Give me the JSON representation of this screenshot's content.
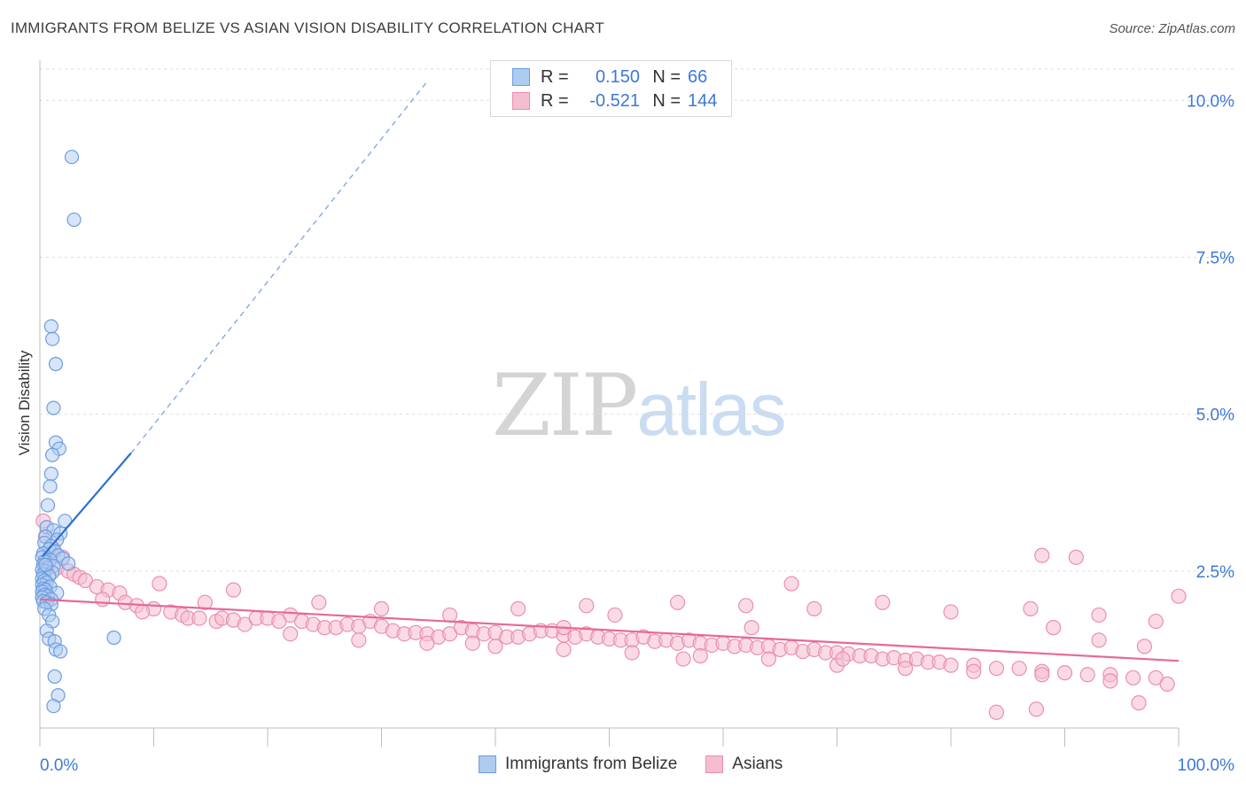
{
  "title": "IMMIGRANTS FROM BELIZE VS ASIAN VISION DISABILITY CORRELATION CHART",
  "source": "Source: ZipAtlas.com",
  "watermark": {
    "zip": "ZIP",
    "atlas": "atlas"
  },
  "colors": {
    "blue_fill": "#aecbf0",
    "blue_stroke": "#6d9de0",
    "blue_line": "#2c6fd1",
    "pink_fill": "#f5bdd0",
    "pink_stroke": "#ea8fb0",
    "pink_line": "#e8679a",
    "tick_text": "#3c78d8",
    "grid": "#dcdcdc"
  },
  "legend": {
    "rows": [
      {
        "r_label": "R =",
        "r_value": "0.150",
        "n_label": "N =",
        "n_value": "66"
      },
      {
        "r_label": "R =",
        "r_value": "-0.521",
        "n_label": "N =",
        "n_value": "144"
      }
    ]
  },
  "bottom_legend": {
    "series1": "Immigrants from Belize",
    "series2": "Asians"
  },
  "chart_data": {
    "type": "scatter",
    "title": "IMMIGRANTS FROM BELIZE VS ASIAN VISION DISABILITY CORRELATION CHART",
    "xlabel": "",
    "ylabel": "Vision Disability",
    "xlim": [
      0,
      100
    ],
    "ylim": [
      0,
      10.5
    ],
    "x_tick_labels": [
      "0.0%",
      "100.0%"
    ],
    "y_ticks": [
      2.5,
      5.0,
      7.5,
      10.0
    ],
    "y_tick_labels": [
      "2.5%",
      "5.0%",
      "7.5%",
      "10.0%"
    ],
    "grid": true,
    "series": [
      {
        "name": "Immigrants from Belize",
        "r": 0.15,
        "n": 66,
        "trend": {
          "x": [
            0.2,
            8.0
          ],
          "y": [
            2.73,
            4.38
          ],
          "dashed_to": [
            34.0,
            10.3
          ]
        },
        "points": [
          [
            2.8,
            9.1
          ],
          [
            3.0,
            8.1
          ],
          [
            1.0,
            6.4
          ],
          [
            1.1,
            6.2
          ],
          [
            1.4,
            5.8
          ],
          [
            1.2,
            5.1
          ],
          [
            1.4,
            4.55
          ],
          [
            1.7,
            4.45
          ],
          [
            1.1,
            4.35
          ],
          [
            1.0,
            4.05
          ],
          [
            0.9,
            3.85
          ],
          [
            0.7,
            3.55
          ],
          [
            2.2,
            3.3
          ],
          [
            0.6,
            3.2
          ],
          [
            1.2,
            3.15
          ],
          [
            1.8,
            3.1
          ],
          [
            0.5,
            3.05
          ],
          [
            1.5,
            3.0
          ],
          [
            0.4,
            2.95
          ],
          [
            1.0,
            2.9
          ],
          [
            0.8,
            2.85
          ],
          [
            1.3,
            2.82
          ],
          [
            0.3,
            2.78
          ],
          [
            1.6,
            2.75
          ],
          [
            0.2,
            2.72
          ],
          [
            2.0,
            2.7
          ],
          [
            0.9,
            2.68
          ],
          [
            0.4,
            2.65
          ],
          [
            2.5,
            2.62
          ],
          [
            0.3,
            2.6
          ],
          [
            1.2,
            2.58
          ],
          [
            0.6,
            2.55
          ],
          [
            0.2,
            2.52
          ],
          [
            0.5,
            2.5
          ],
          [
            1.1,
            2.48
          ],
          [
            0.3,
            2.45
          ],
          [
            0.8,
            2.42
          ],
          [
            0.2,
            2.38
          ],
          [
            0.4,
            2.35
          ],
          [
            0.6,
            2.32
          ],
          [
            0.2,
            2.28
          ],
          [
            0.9,
            2.25
          ],
          [
            0.3,
            2.22
          ],
          [
            0.5,
            2.2
          ],
          [
            0.2,
            2.17
          ],
          [
            1.5,
            2.15
          ],
          [
            0.4,
            2.12
          ],
          [
            0.7,
            2.1
          ],
          [
            0.2,
            2.08
          ],
          [
            1.0,
            2.05
          ],
          [
            0.3,
            2.02
          ],
          [
            0.6,
            2.0
          ],
          [
            1.0,
            1.97
          ],
          [
            0.4,
            1.9
          ],
          [
            0.8,
            1.8
          ],
          [
            1.1,
            1.7
          ],
          [
            0.6,
            1.55
          ],
          [
            0.8,
            1.42
          ],
          [
            1.3,
            1.38
          ],
          [
            6.5,
            1.44
          ],
          [
            1.4,
            1.25
          ],
          [
            1.8,
            1.22
          ],
          [
            1.3,
            0.82
          ],
          [
            1.6,
            0.52
          ],
          [
            1.2,
            0.35
          ],
          [
            0.5,
            2.6
          ]
        ]
      },
      {
        "name": "Asians",
        "r": -0.521,
        "n": 144,
        "trend": {
          "x": [
            0,
            100
          ],
          "y": [
            2.05,
            1.07
          ]
        },
        "points": [
          [
            0.3,
            3.3
          ],
          [
            0.5,
            3.05
          ],
          [
            1.2,
            2.85
          ],
          [
            2.0,
            2.72
          ],
          [
            0.7,
            2.62
          ],
          [
            1.5,
            2.55
          ],
          [
            2.5,
            2.5
          ],
          [
            3.0,
            2.45
          ],
          [
            3.5,
            2.4
          ],
          [
            0.4,
            2.35
          ],
          [
            4.0,
            2.35
          ],
          [
            5.0,
            2.25
          ],
          [
            6.0,
            2.2
          ],
          [
            7.0,
            2.15
          ],
          [
            5.5,
            2.05
          ],
          [
            7.5,
            2.0
          ],
          [
            8.5,
            1.95
          ],
          [
            10.0,
            1.9
          ],
          [
            11.5,
            1.85
          ],
          [
            12.5,
            1.8
          ],
          [
            9.0,
            1.85
          ],
          [
            13.0,
            1.75
          ],
          [
            14.0,
            1.75
          ],
          [
            15.5,
            1.7
          ],
          [
            16.0,
            1.75
          ],
          [
            17.0,
            1.72
          ],
          [
            18.0,
            1.65
          ],
          [
            19.0,
            1.75
          ],
          [
            20.0,
            1.75
          ],
          [
            21.0,
            1.7
          ],
          [
            22.0,
            1.8
          ],
          [
            23.0,
            1.7
          ],
          [
            24.0,
            1.65
          ],
          [
            25.0,
            1.6
          ],
          [
            26.0,
            1.6
          ],
          [
            27.0,
            1.65
          ],
          [
            28.0,
            1.62
          ],
          [
            29.0,
            1.7
          ],
          [
            30.0,
            1.62
          ],
          [
            31.0,
            1.55
          ],
          [
            32.0,
            1.5
          ],
          [
            33.0,
            1.52
          ],
          [
            34.0,
            1.5
          ],
          [
            35.0,
            1.45
          ],
          [
            36.0,
            1.5
          ],
          [
            37.0,
            1.6
          ],
          [
            38.0,
            1.55
          ],
          [
            39.0,
            1.5
          ],
          [
            40.0,
            1.52
          ],
          [
            41.0,
            1.45
          ],
          [
            42.0,
            1.45
          ],
          [
            43.0,
            1.5
          ],
          [
            44.0,
            1.55
          ],
          [
            45.0,
            1.55
          ],
          [
            46.0,
            1.48
          ],
          [
            47.0,
            1.45
          ],
          [
            48.0,
            1.5
          ],
          [
            49.0,
            1.45
          ],
          [
            50.0,
            1.42
          ],
          [
            51.0,
            1.4
          ],
          [
            52.0,
            1.4
          ],
          [
            53.0,
            1.45
          ],
          [
            54.0,
            1.38
          ],
          [
            55.0,
            1.4
          ],
          [
            56.0,
            1.35
          ],
          [
            57.0,
            1.4
          ],
          [
            58.0,
            1.35
          ],
          [
            59.0,
            1.32
          ],
          [
            60.0,
            1.35
          ],
          [
            61.0,
            1.3
          ],
          [
            62.0,
            1.32
          ],
          [
            63.0,
            1.28
          ],
          [
            64.0,
            1.3
          ],
          [
            65.0,
            1.25
          ],
          [
            66.0,
            1.28
          ],
          [
            67.0,
            1.22
          ],
          [
            68.0,
            1.25
          ],
          [
            69.0,
            1.2
          ],
          [
            70.0,
            1.2
          ],
          [
            71.0,
            1.18
          ],
          [
            72.0,
            1.15
          ],
          [
            73.0,
            1.15
          ],
          [
            74.0,
            1.1
          ],
          [
            75.0,
            1.12
          ],
          [
            76.0,
            1.08
          ],
          [
            77.0,
            1.1
          ],
          [
            78.0,
            1.05
          ],
          [
            79.0,
            1.05
          ],
          [
            80.0,
            1.0
          ],
          [
            82.0,
            1.0
          ],
          [
            84.0,
            0.95
          ],
          [
            86.0,
            0.95
          ],
          [
            88.0,
            0.9
          ],
          [
            90.0,
            0.88
          ],
          [
            92.0,
            0.85
          ],
          [
            94.0,
            0.85
          ],
          [
            96.0,
            0.8
          ],
          [
            98.0,
            0.8
          ],
          [
            14.5,
            2.0
          ],
          [
            10.5,
            2.3
          ],
          [
            17.0,
            2.2
          ],
          [
            24.5,
            2.0
          ],
          [
            30.0,
            1.9
          ],
          [
            36.0,
            1.8
          ],
          [
            42.0,
            1.9
          ],
          [
            48.0,
            1.95
          ],
          [
            56.0,
            2.0
          ],
          [
            62.0,
            1.95
          ],
          [
            68.0,
            1.9
          ],
          [
            74.0,
            2.0
          ],
          [
            80.0,
            1.85
          ],
          [
            87.0,
            1.9
          ],
          [
            93.0,
            1.8
          ],
          [
            98.0,
            1.7
          ],
          [
            22.0,
            1.5
          ],
          [
            28.0,
            1.4
          ],
          [
            34.0,
            1.35
          ],
          [
            40.0,
            1.3
          ],
          [
            46.0,
            1.25
          ],
          [
            52.0,
            1.2
          ],
          [
            58.0,
            1.15
          ],
          [
            64.0,
            1.1
          ],
          [
            70.0,
            1.0
          ],
          [
            76.0,
            0.95
          ],
          [
            82.0,
            0.9
          ],
          [
            88.0,
            0.85
          ],
          [
            94.0,
            0.75
          ],
          [
            99.0,
            0.7
          ],
          [
            66.0,
            2.3
          ],
          [
            88.0,
            2.75
          ],
          [
            91.0,
            2.72
          ],
          [
            100.0,
            2.1
          ],
          [
            93.0,
            1.4
          ],
          [
            97.0,
            1.3
          ],
          [
            89.0,
            1.6
          ],
          [
            87.5,
            0.3
          ],
          [
            70.5,
            1.1
          ],
          [
            56.5,
            1.1
          ],
          [
            84.0,
            0.25
          ],
          [
            96.5,
            0.4
          ],
          [
            62.5,
            1.6
          ],
          [
            46.0,
            1.6
          ],
          [
            38.0,
            1.35
          ],
          [
            50.5,
            1.8
          ]
        ]
      }
    ]
  }
}
